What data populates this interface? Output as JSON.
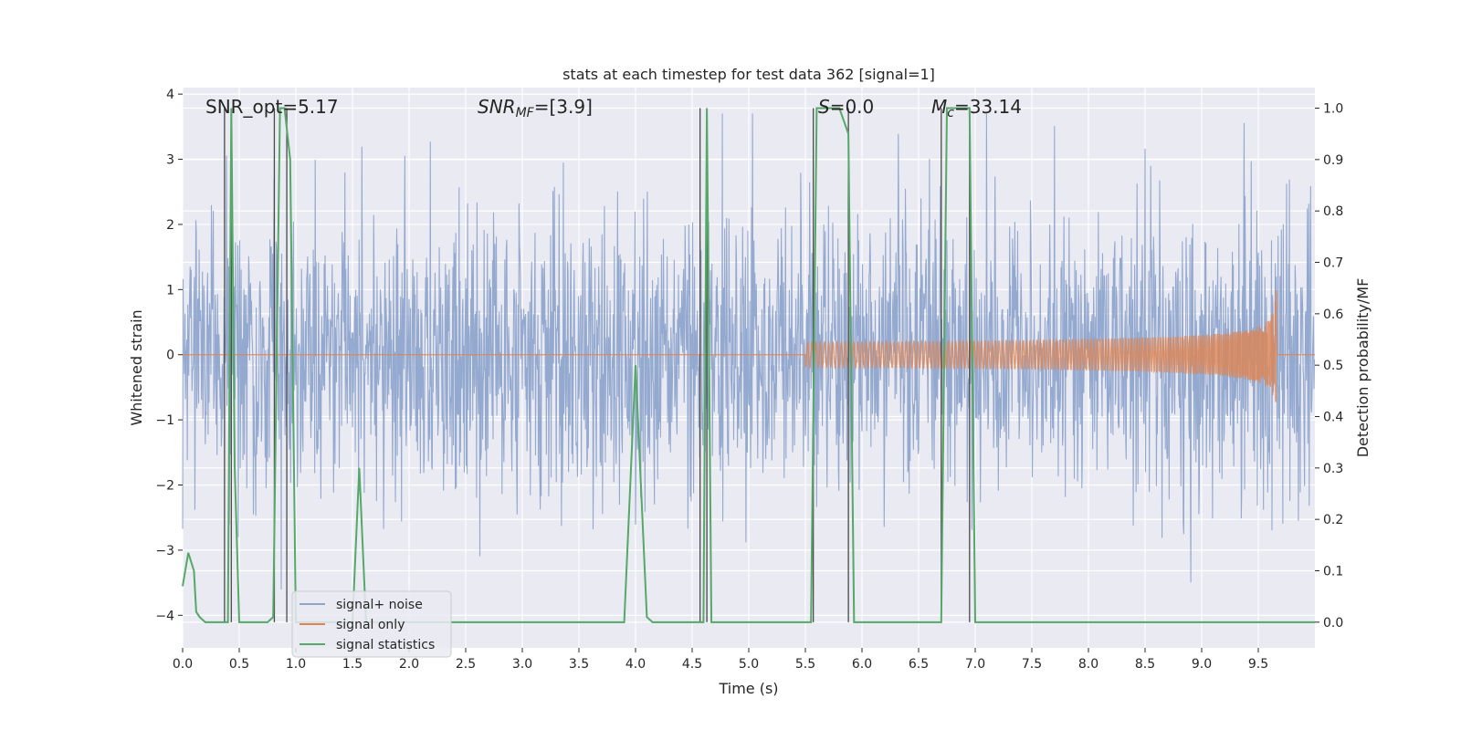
{
  "chart_data": {
    "type": "line",
    "title": "stats at each timestep for test data 362 [signal=1]",
    "xlabel": "Time (s)",
    "ylabel_left": "Whitened strain",
    "ylabel_right": "Detection probability/MF",
    "xlim": [
      0.0,
      10.0
    ],
    "ylim_left": [
      -4.5,
      4.1
    ],
    "ylim_right": [
      -0.05,
      1.04
    ],
    "x_ticks": [
      "0.0",
      "0.5",
      "1.0",
      "1.5",
      "2.0",
      "2.5",
      "3.0",
      "3.5",
      "4.0",
      "4.5",
      "5.0",
      "5.5",
      "6.0",
      "6.5",
      "7.0",
      "7.5",
      "8.0",
      "8.5",
      "9.0",
      "9.5"
    ],
    "y_ticks_left": [
      "4",
      "3",
      "2",
      "1",
      "0",
      "−1",
      "−2",
      "−3",
      "−4"
    ],
    "y_ticks_right": [
      "1.0",
      "0.9",
      "0.8",
      "0.7",
      "0.6",
      "0.5",
      "0.4",
      "0.3",
      "0.2",
      "0.1",
      "0.0"
    ],
    "grid": true,
    "legend_position": "lower-left",
    "legend": [
      "signal+ noise",
      "signal only",
      "signal statistics"
    ],
    "colors": {
      "noise": "#8fa5cc",
      "signal": "#dd8452",
      "stats": "#55a868",
      "vline": "#4a4a4a",
      "background": "#eaeaf2"
    },
    "annotations": {
      "snr_opt": "SNR_opt=5.17",
      "snr_mf_italic": "SNR",
      "snr_mf_sub": "MF",
      "snr_mf_rest": "=[3.9]",
      "s_italic": "S",
      "s_rest": "=0.0",
      "mc_italic": "M",
      "mc_sub": "c",
      "mc_rest": "=33.14"
    },
    "vertical_lines": [
      0.37,
      0.43,
      0.81,
      0.92,
      4.57,
      4.63,
      5.57,
      5.88,
      6.7,
      6.95
    ],
    "signal_statistics": {
      "x": [
        0.0,
        0.05,
        0.1,
        0.12,
        0.15,
        0.2,
        0.35,
        0.4,
        0.43,
        0.46,
        0.5,
        0.75,
        0.8,
        0.86,
        0.9,
        0.95,
        1.0,
        1.5,
        1.56,
        1.62,
        3.9,
        4.0,
        4.1,
        4.15,
        4.55,
        4.6,
        4.63,
        4.67,
        5.55,
        5.6,
        5.8,
        5.88,
        5.93,
        6.7,
        6.75,
        6.95,
        7.0,
        10.0
      ],
      "y": [
        0.07,
        0.135,
        0.1,
        0.02,
        0.01,
        0.0,
        0.0,
        0.0,
        1.0,
        0.3,
        0.0,
        0.0,
        0.01,
        1.0,
        1.0,
        0.9,
        0.0,
        0.0,
        0.3,
        0.0,
        0.0,
        0.5,
        0.01,
        0.0,
        0.0,
        0.0,
        1.0,
        0.0,
        0.0,
        1.0,
        1.0,
        0.95,
        0.0,
        0.0,
        1.0,
        1.0,
        0.0,
        0.0
      ]
    },
    "signal_only": {
      "description_free": true,
      "chirp_start": 5.5,
      "chirp_peak": 9.66,
      "peak_amplitude": 1.3
    },
    "signal_plus_noise": {
      "noise_sigma": 1.0,
      "range": [
        -3.65,
        3.7
      ]
    }
  }
}
